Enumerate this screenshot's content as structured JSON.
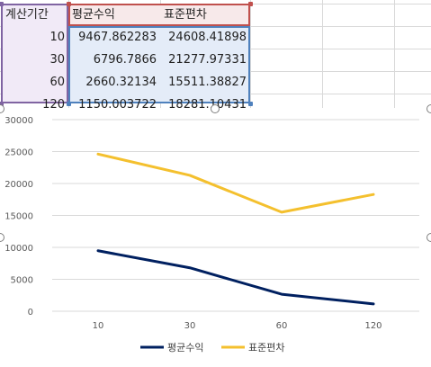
{
  "sheet": {
    "headers": [
      "계산기간",
      "평균수익",
      "표준편차"
    ],
    "rows": [
      [
        "10",
        "9467.862283",
        "24608.41898"
      ],
      [
        "30",
        "6796.7866",
        "21277.97331"
      ],
      [
        "60",
        "2660.32134",
        "15511.38827"
      ],
      [
        "120",
        "1150.003722",
        "18281.10431"
      ]
    ],
    "range_colors": {
      "period": "#8064a2",
      "values": "#4f81bd",
      "header": "#c0504d"
    }
  },
  "chart_data": {
    "type": "line",
    "categories": [
      "10",
      "30",
      "60",
      "120"
    ],
    "series": [
      {
        "name": "평균수익",
        "values": [
          9467.862283,
          6796.7866,
          2660.32134,
          1150.003722
        ],
        "color": "#002060"
      },
      {
        "name": "표준편차",
        "values": [
          24608.41898,
          21277.97331,
          15511.38827,
          18281.10431
        ],
        "color": "#f4c02e"
      }
    ],
    "ylim": [
      0,
      30000
    ],
    "yticks": [
      "0",
      "5000",
      "10000",
      "15000",
      "20000",
      "25000",
      "30000"
    ],
    "grid": true,
    "legend": "bottom",
    "title": "",
    "xlabel": "",
    "ylabel": ""
  }
}
